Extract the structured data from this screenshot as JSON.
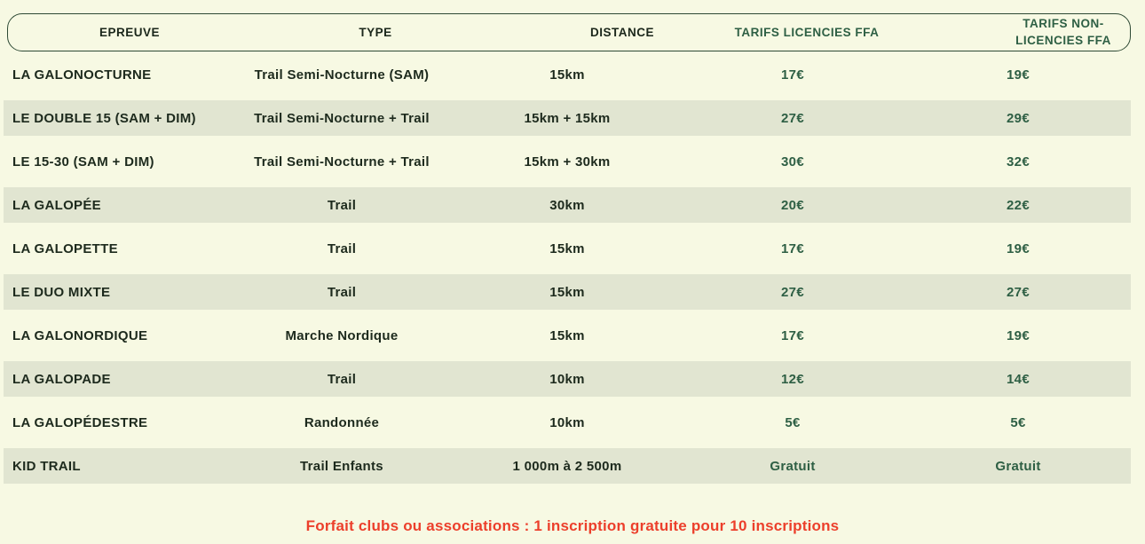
{
  "colors": {
    "background": "#f7f9e3",
    "stripe": "#e1e5d1",
    "dark_text": "#1d2a1d",
    "green_text": "#2e5f44",
    "header_border": "#2e4a35",
    "footer_red": "#ec3f2b"
  },
  "table": {
    "columns": [
      {
        "label": "EPREUVE"
      },
      {
        "label": "TYPE"
      },
      {
        "label": "DISTANCE"
      },
      {
        "label": "TARIFS LICENCIES FFA"
      },
      {
        "label": "TARIFS NON-LICENCIES FFA"
      }
    ],
    "rows": [
      {
        "epreuve": "LA GALONOCTURNE",
        "type": "Trail Semi-Nocturne (SAM)",
        "distance": "15km",
        "tarif_licencies_ffa": "17€",
        "tarif_non_licencies_ffa": "19€"
      },
      {
        "epreuve": "LE DOUBLE 15 (SAM + DIM)",
        "type": "Trail Semi-Nocturne + Trail",
        "distance": "15km + 15km",
        "tarif_licencies_ffa": "27€",
        "tarif_non_licencies_ffa": "29€"
      },
      {
        "epreuve": "LE 15-30 (SAM + DIM)",
        "type": "Trail Semi-Nocturne + Trail",
        "distance": "15km + 30km",
        "tarif_licencies_ffa": "30€",
        "tarif_non_licencies_ffa": "32€"
      },
      {
        "epreuve": "LA GALOPÉE",
        "type": "Trail",
        "distance": "30km",
        "tarif_licencies_ffa": "20€",
        "tarif_non_licencies_ffa": "22€"
      },
      {
        "epreuve": "LA GALOPETTE",
        "type": "Trail",
        "distance": "15km",
        "tarif_licencies_ffa": "17€",
        "tarif_non_licencies_ffa": "19€"
      },
      {
        "epreuve": "LE DUO MIXTE",
        "type": "Trail",
        "distance": "15km",
        "tarif_licencies_ffa": "27€",
        "tarif_non_licencies_ffa": "27€"
      },
      {
        "epreuve": "LA GALONORDIQUE",
        "type": "Marche Nordique",
        "distance": "15km",
        "tarif_licencies_ffa": "17€",
        "tarif_non_licencies_ffa": "19€"
      },
      {
        "epreuve": "LA GALOPADE",
        "type": "Trail",
        "distance": "10km",
        "tarif_licencies_ffa": "12€",
        "tarif_non_licencies_ffa": "14€"
      },
      {
        "epreuve": "LA GALOPÉDESTRE",
        "type": "Randonnée",
        "distance": "10km",
        "tarif_licencies_ffa": "5€",
        "tarif_non_licencies_ffa": "5€"
      },
      {
        "epreuve": "KID TRAIL",
        "type": "Trail Enfants",
        "distance": "1 000m à 2 500m",
        "tarif_licencies_ffa": "Gratuit",
        "tarif_non_licencies_ffa": "Gratuit"
      }
    ]
  },
  "footer": {
    "note": "Forfait clubs ou associations : 1 inscription gratuite pour 10 inscriptions"
  }
}
